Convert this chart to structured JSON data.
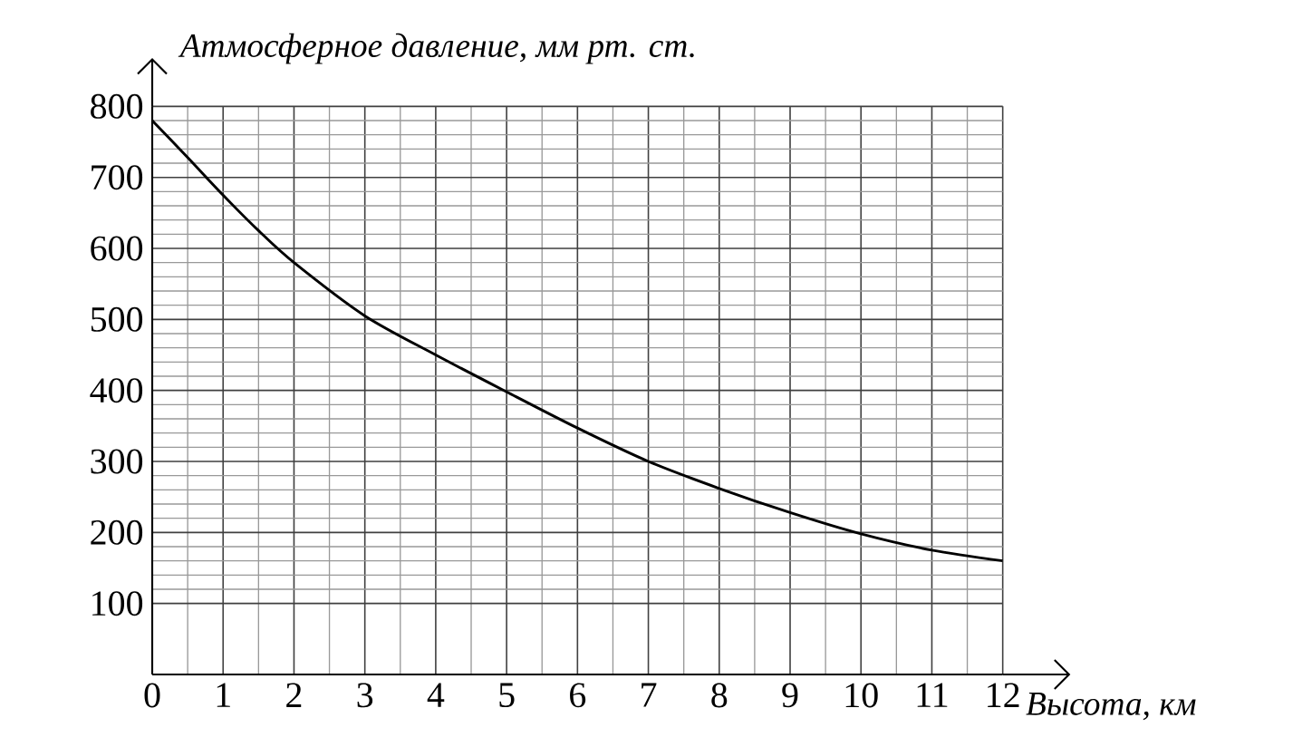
{
  "chart_data": {
    "type": "line",
    "xlabel": "Высота, км",
    "ylabel": "Атмосферное давление, мм рт. ст.",
    "x": [
      0,
      0.5,
      1,
      1.5,
      2,
      3,
      4,
      5,
      6,
      7,
      8,
      9,
      10,
      11,
      12
    ],
    "series": [
      {
        "color": "#000000",
        "values": [
          780,
          728,
          675,
          625,
          580,
          505,
          450,
          398,
          347,
          300,
          262,
          228,
          198,
          175,
          160
        ]
      }
    ],
    "xlim": [
      0,
      12
    ],
    "ylim": [
      0,
      800
    ],
    "xticks": [
      0,
      1,
      2,
      3,
      4,
      5,
      6,
      7,
      8,
      9,
      10,
      11,
      12
    ],
    "yticks": [
      100,
      200,
      300,
      400,
      500,
      600,
      700,
      800
    ],
    "grid": true,
    "marker": "none",
    "line_style": "solid"
  }
}
